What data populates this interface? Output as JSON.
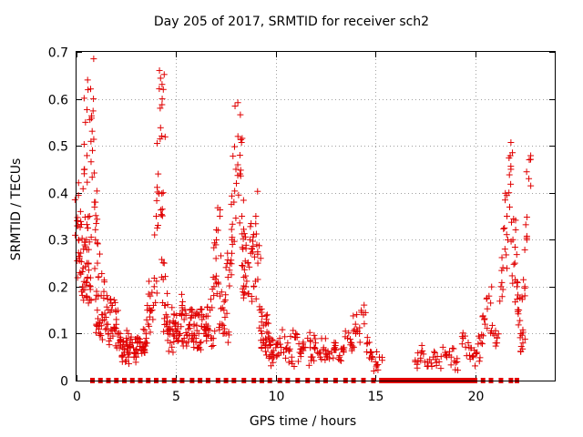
{
  "chart_data": {
    "type": "scatter",
    "title": "Day 205 of 2017, SRMTID for receiver sch2",
    "xlabel": "GPS time / hours",
    "ylabel": "SRMTID / TECUs",
    "xlim": [
      0,
      24
    ],
    "ylim": [
      0,
      0.7
    ],
    "xticks": [
      "0",
      "5",
      "10",
      "15",
      "20"
    ],
    "yticks": [
      "0",
      "0.1",
      "0.2",
      "0.3",
      "0.4",
      "0.5",
      "0.6",
      "0.7"
    ],
    "grid": true,
    "marker": "+",
    "color": "#e00000",
    "series": [
      {
        "name": "SRMTID",
        "x": [
          0.05,
          0.1,
          0.15,
          0.2,
          0.3,
          0.35,
          0.4,
          0.45,
          0.5,
          0.5,
          0.55,
          0.6,
          0.65,
          0.7,
          0.8,
          0.85,
          0.9,
          0.95,
          1.0,
          1.05,
          1.1,
          1.2,
          1.3,
          1.4,
          1.5,
          1.6,
          1.7,
          1.8,
          1.9,
          2.0,
          2.1,
          2.2,
          2.3,
          2.4,
          2.5,
          2.6,
          2.7,
          2.8,
          2.9,
          3.0,
          3.1,
          3.2,
          3.3,
          3.4,
          3.5,
          3.6,
          3.7,
          3.8,
          3.9,
          4.0,
          4.1,
          4.2,
          4.3,
          4.35,
          4.4,
          4.45,
          4.5,
          4.6,
          4.7,
          4.8,
          4.9,
          5.0,
          5.1,
          5.2,
          5.3,
          5.4,
          5.5,
          5.6,
          5.7,
          5.8,
          5.9,
          6.0,
          6.1,
          6.2,
          6.3,
          6.4,
          6.5,
          6.6,
          6.7,
          6.8,
          6.9,
          7.0,
          7.1,
          7.2,
          7.3,
          7.4,
          7.5,
          7.6,
          7.7,
          7.8,
          7.9,
          8.0,
          8.1,
          8.2,
          8.3,
          8.35,
          8.4,
          8.5,
          8.6,
          8.7,
          8.8,
          8.9,
          9.0,
          9.1,
          9.2,
          9.3,
          9.4,
          9.5,
          9.6,
          9.7,
          9.8,
          9.9,
          10.0,
          10.2,
          10.4,
          10.6,
          10.8,
          11.0,
          11.2,
          11.4,
          11.6,
          11.8,
          12.0,
          12.2,
          12.4,
          12.6,
          12.8,
          13.0,
          13.2,
          13.4,
          13.6,
          13.8,
          14.0,
          14.2,
          14.4,
          14.6,
          14.8,
          15.0,
          15.2,
          17.0,
          17.3,
          17.6,
          17.9,
          18.2,
          18.5,
          18.8,
          19.1,
          19.4,
          19.7,
          19.9,
          20.1,
          20.3,
          20.5,
          20.7,
          20.9,
          21.1,
          21.3,
          21.5,
          21.6,
          21.7,
          21.8,
          21.9,
          22.0,
          22.1,
          22.2,
          22.3,
          22.4,
          22.5,
          22.6,
          22.7
        ],
        "y": [
          0.34,
          0.3,
          0.26,
          0.36,
          0.2,
          0.28,
          0.45,
          0.55,
          0.3,
          0.18,
          0.22,
          0.25,
          0.35,
          0.2,
          0.49,
          0.6,
          0.38,
          0.3,
          0.12,
          0.25,
          0.18,
          0.1,
          0.14,
          0.21,
          0.12,
          0.15,
          0.09,
          0.16,
          0.11,
          0.13,
          0.08,
          0.1,
          0.07,
          0.06,
          0.09,
          0.05,
          0.07,
          0.08,
          0.06,
          0.05,
          0.09,
          0.08,
          0.07,
          0.06,
          0.09,
          0.12,
          0.18,
          0.15,
          0.2,
          0.35,
          0.44,
          0.58,
          0.6,
          0.4,
          0.25,
          0.16,
          0.12,
          0.1,
          0.08,
          0.11,
          0.14,
          0.09,
          0.12,
          0.1,
          0.16,
          0.13,
          0.08,
          0.11,
          0.15,
          0.1,
          0.12,
          0.09,
          0.14,
          0.08,
          0.13,
          0.1,
          0.12,
          0.11,
          0.15,
          0.09,
          0.2,
          0.26,
          0.32,
          0.18,
          0.12,
          0.15,
          0.1,
          0.22,
          0.25,
          0.3,
          0.38,
          0.45,
          0.52,
          0.48,
          0.35,
          0.28,
          0.22,
          0.2,
          0.25,
          0.3,
          0.28,
          0.2,
          0.35,
          0.25,
          0.15,
          0.1,
          0.08,
          0.12,
          0.07,
          0.09,
          0.06,
          0.05,
          0.07,
          0.09,
          0.06,
          0.08,
          0.05,
          0.1,
          0.06,
          0.07,
          0.09,
          0.05,
          0.08,
          0.06,
          0.07,
          0.05,
          0.06,
          0.08,
          0.05,
          0.07,
          0.09,
          0.08,
          0.12,
          0.1,
          0.14,
          0.08,
          0.06,
          0.04,
          0.05,
          0.04,
          0.06,
          0.03,
          0.05,
          0.04,
          0.06,
          0.05,
          0.04,
          0.09,
          0.07,
          0.05,
          0.06,
          0.08,
          0.12,
          0.18,
          0.1,
          0.08,
          0.2,
          0.28,
          0.35,
          0.4,
          0.45,
          0.3,
          0.25,
          0.2,
          0.15,
          0.1,
          0.08,
          0.2,
          0.3,
          0.43
        ],
        "zeros_x": [
          0.8,
          1.2,
          1.6,
          2.0,
          2.4,
          2.8,
          3.2,
          3.6,
          4.0,
          4.4,
          4.9,
          5.3,
          5.8,
          6.2,
          6.6,
          7.1,
          7.5,
          7.9,
          8.4,
          8.9,
          9.3,
          9.7,
          10.2,
          10.6,
          11.1,
          11.6,
          12.1,
          12.5,
          13.0,
          13.5,
          13.9,
          14.4,
          14.9,
          15.3,
          15.5,
          15.6,
          15.7,
          15.8,
          15.9,
          16.0,
          16.1,
          16.2,
          16.3,
          16.4,
          16.5,
          16.6,
          16.7,
          16.8,
          16.9,
          17.0,
          17.1,
          17.2,
          17.3,
          17.4,
          17.5,
          17.6,
          17.7,
          17.8,
          17.9,
          18.0,
          18.1,
          18.2,
          18.3,
          18.4,
          18.5,
          18.6,
          18.7,
          18.8,
          18.9,
          19.0,
          19.1,
          19.2,
          19.3,
          19.4,
          19.5,
          19.6,
          19.7,
          19.8,
          20.0,
          20.4,
          20.8,
          21.3,
          21.8,
          22.1
        ]
      }
    ]
  }
}
